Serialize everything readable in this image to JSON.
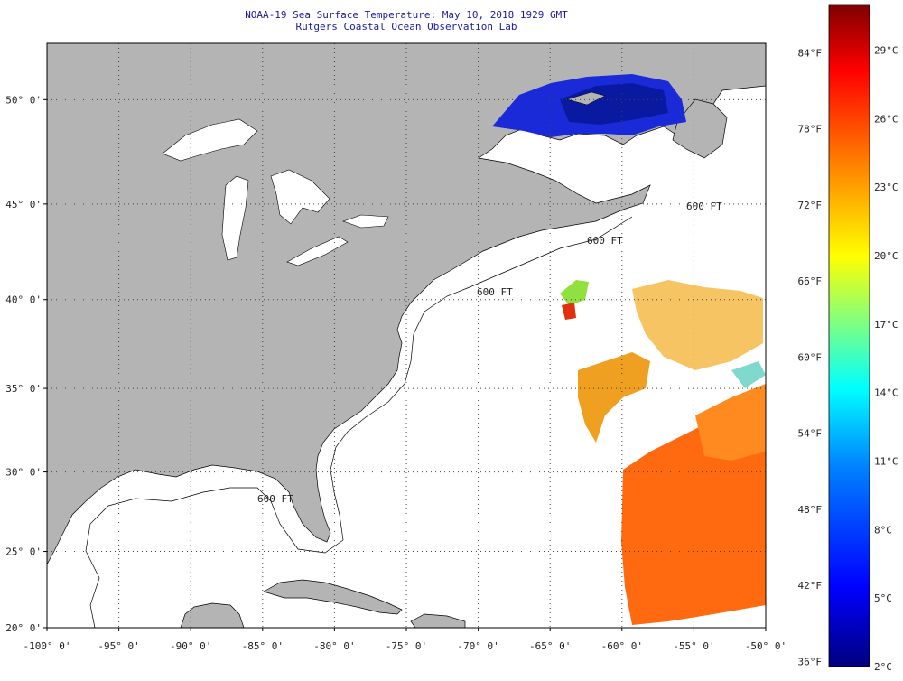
{
  "title_line1": "NOAA-19 Sea Surface Temperature:  May 10, 2018 1929 GMT",
  "title_line2": "Rutgers Coastal Ocean Observation Lab",
  "lat_labels": [
    "50° 0'",
    "45° 0'",
    "40° 0'",
    "35° 0'",
    "30° 0'",
    "25° 0'",
    "20° 0'"
  ],
  "lat_values": [
    50,
    45,
    40,
    35,
    30,
    25,
    20
  ],
  "lon_labels": [
    "-100° 0'",
    "-95° 0'",
    "-90° 0'",
    "-85° 0'",
    "-80° 0'",
    "-75° 0'",
    "-70° 0'",
    "-65° 0'",
    "-60° 0'",
    "-55° 0'",
    "-50° 0'"
  ],
  "lon_values": [
    -100,
    -95,
    -90,
    -85,
    -80,
    -75,
    -70,
    -65,
    -60,
    -55,
    -50
  ],
  "colorbar": {
    "fahrenheit_labels": [
      "84°F",
      "78°F",
      "72°F",
      "66°F",
      "60°F",
      "54°F",
      "48°F",
      "42°F",
      "36°F"
    ],
    "fahrenheit_values": [
      84,
      78,
      72,
      66,
      60,
      54,
      48,
      42,
      36
    ],
    "celsius_labels": [
      "29°C",
      "26°C",
      "23°C",
      "20°C",
      "17°C",
      "14°C",
      "11°C",
      "8°C",
      "5°C",
      "2°C"
    ],
    "celsius_values": [
      29,
      26,
      23,
      20,
      17,
      14,
      11,
      8,
      5,
      2
    ],
    "range_c": [
      2,
      31
    ],
    "colors": [
      "#00007f",
      "#0000ff",
      "#0080ff",
      "#00ffff",
      "#80ff80",
      "#ffff00",
      "#ff8000",
      "#ff0000",
      "#7f0000"
    ]
  },
  "map_colors": {
    "land": "#b4b4b4",
    "water": "#ffffff",
    "grid": "#555555"
  },
  "isobath_labels": [
    "600 FT",
    "600 FT",
    "600 FT",
    "600 FT"
  ]
}
